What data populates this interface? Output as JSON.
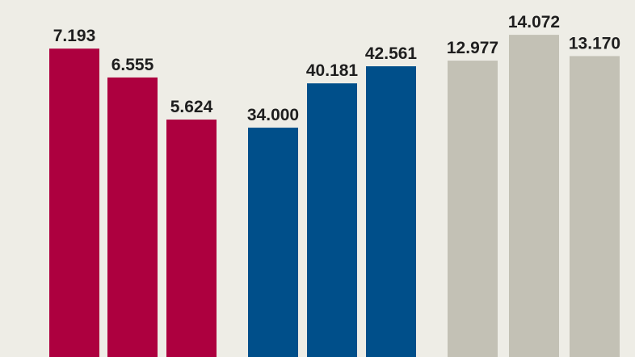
{
  "chart_data": {
    "type": "bar",
    "groups": [
      {
        "color": "#ad003f",
        "values": [
          7.193,
          6.555,
          5.624
        ],
        "labels": [
          "7.193",
          "6.555",
          "5.624"
        ]
      },
      {
        "color": "#004f8a",
        "values": [
          34000,
          40181,
          42561
        ],
        "labels": [
          "34.000",
          "40.181",
          "42.561"
        ]
      },
      {
        "color": "#c3c1b5",
        "values": [
          12977,
          14072,
          13170
        ],
        "labels": [
          "12.977",
          "14.072",
          "13.170"
        ]
      }
    ],
    "background": "#eeede6",
    "grid": false
  }
}
